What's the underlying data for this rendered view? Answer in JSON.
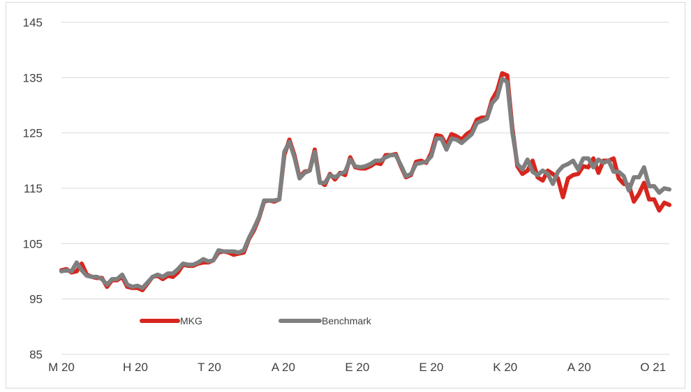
{
  "chart_data": {
    "type": "line",
    "title": "",
    "xlabel": "",
    "ylabel": "",
    "ylim": [
      85,
      145
    ],
    "y_ticks": [
      85,
      95,
      105,
      115,
      125,
      135,
      145
    ],
    "x_tick_labels": [
      "M 20",
      "H 20",
      "T 20",
      "A 20",
      "E 20",
      "E 20",
      "K 20",
      "A 20",
      "O 21"
    ],
    "grid": "horizontal",
    "legend_position": "bottom-left-inside",
    "x": [
      0,
      1,
      2,
      3,
      4,
      5,
      6,
      7,
      8,
      9,
      10,
      11,
      12,
      13,
      14,
      15,
      16,
      17,
      18,
      19,
      20,
      21,
      22,
      23,
      24,
      25,
      26,
      27,
      28,
      29,
      30,
      31,
      32,
      33,
      34,
      35,
      36,
      37,
      38,
      39,
      40,
      41,
      42,
      43,
      44,
      45,
      46,
      47,
      48,
      49,
      50,
      51,
      52,
      53,
      54,
      55,
      56,
      57,
      58,
      59,
      60,
      61,
      62,
      63,
      64,
      65,
      66,
      67,
      68,
      69,
      70,
      71,
      72,
      73,
      74,
      75,
      76,
      77,
      78,
      79,
      80,
      81,
      82,
      83,
      84,
      85,
      86,
      87,
      88,
      89,
      90,
      91,
      92,
      93,
      94,
      95,
      96,
      97,
      98,
      99,
      100,
      101,
      102,
      103,
      104,
      105,
      106,
      107,
      108,
      109,
      110,
      111,
      112,
      113,
      114,
      115,
      116,
      117,
      118,
      119,
      120
    ],
    "series": [
      {
        "name": "MKG",
        "color": "#d7261e",
        "values": [
          100.2,
          100.4,
          99.8,
          100.0,
          101.4,
          99.4,
          99.0,
          98.8,
          98.8,
          97.2,
          98.4,
          98.4,
          99.0,
          97.2,
          97.0,
          97.0,
          96.6,
          97.8,
          99.0,
          99.2,
          98.6,
          99.2,
          99.0,
          99.8,
          101.2,
          101.0,
          101.0,
          101.4,
          101.6,
          101.6,
          102.0,
          103.4,
          103.6,
          103.4,
          103.0,
          103.2,
          103.4,
          105.8,
          107.4,
          109.6,
          112.6,
          112.8,
          112.6,
          113.0,
          121.0,
          123.8,
          121.0,
          117.0,
          118.0,
          118.2,
          122.0,
          116.2,
          115.6,
          117.6,
          116.6,
          117.8,
          117.4,
          120.6,
          118.8,
          118.6,
          118.6,
          119.0,
          119.6,
          119.4,
          121.0,
          121.0,
          121.2,
          119.0,
          117.0,
          117.4,
          119.8,
          120.0,
          119.6,
          121.4,
          124.6,
          124.4,
          122.8,
          124.8,
          124.4,
          123.8,
          124.8,
          125.4,
          127.4,
          127.8,
          127.8,
          131.0,
          132.6,
          135.8,
          135.4,
          126.0,
          119.0,
          117.6,
          118.2,
          120.0,
          117.0,
          116.4,
          118.2,
          117.6,
          116.8,
          113.4,
          116.8,
          117.4,
          117.6,
          119.0,
          118.8,
          120.4,
          117.8,
          120.0,
          120.0,
          120.4,
          116.8,
          115.8,
          115.6,
          112.6,
          114.0,
          116.0,
          113.0,
          113.0,
          111.0,
          112.4,
          112.0
        ],
        "label": "MKG"
      },
      {
        "name": "Benchmark",
        "color": "#7f7f7f",
        "values": [
          100.0,
          100.2,
          100.0,
          101.6,
          100.2,
          99.2,
          99.0,
          99.0,
          98.6,
          97.6,
          98.6,
          98.6,
          99.4,
          97.6,
          97.2,
          97.4,
          97.0,
          98.0,
          99.0,
          99.4,
          99.0,
          99.6,
          99.6,
          100.4,
          101.4,
          101.2,
          101.2,
          101.6,
          102.2,
          101.8,
          102.0,
          103.8,
          103.6,
          103.6,
          103.6,
          103.4,
          103.8,
          106.0,
          107.8,
          109.8,
          112.8,
          112.8,
          112.8,
          113.0,
          121.6,
          123.4,
          120.6,
          116.8,
          117.8,
          118.2,
          121.6,
          116.0,
          116.0,
          117.4,
          117.0,
          117.6,
          118.0,
          120.2,
          119.0,
          118.8,
          119.0,
          119.4,
          120.0,
          120.0,
          120.6,
          121.0,
          121.0,
          119.2,
          117.2,
          117.6,
          119.4,
          119.6,
          119.8,
          120.8,
          124.0,
          124.0,
          122.0,
          124.0,
          123.8,
          123.2,
          124.0,
          124.8,
          126.8,
          127.2,
          127.6,
          130.4,
          131.4,
          134.8,
          134.2,
          125.2,
          119.4,
          118.4,
          120.2,
          118.0,
          117.4,
          118.2,
          117.6,
          115.8,
          118.0,
          119.0,
          119.4,
          120.0,
          118.4,
          120.4,
          120.4,
          118.8,
          120.2,
          119.6,
          120.0,
          118.0,
          118.0,
          117.2,
          114.6,
          117.0,
          117.0,
          118.8,
          115.4,
          115.4,
          114.2,
          115.0,
          114.8
        ],
        "label": "Benchmark"
      }
    ]
  }
}
